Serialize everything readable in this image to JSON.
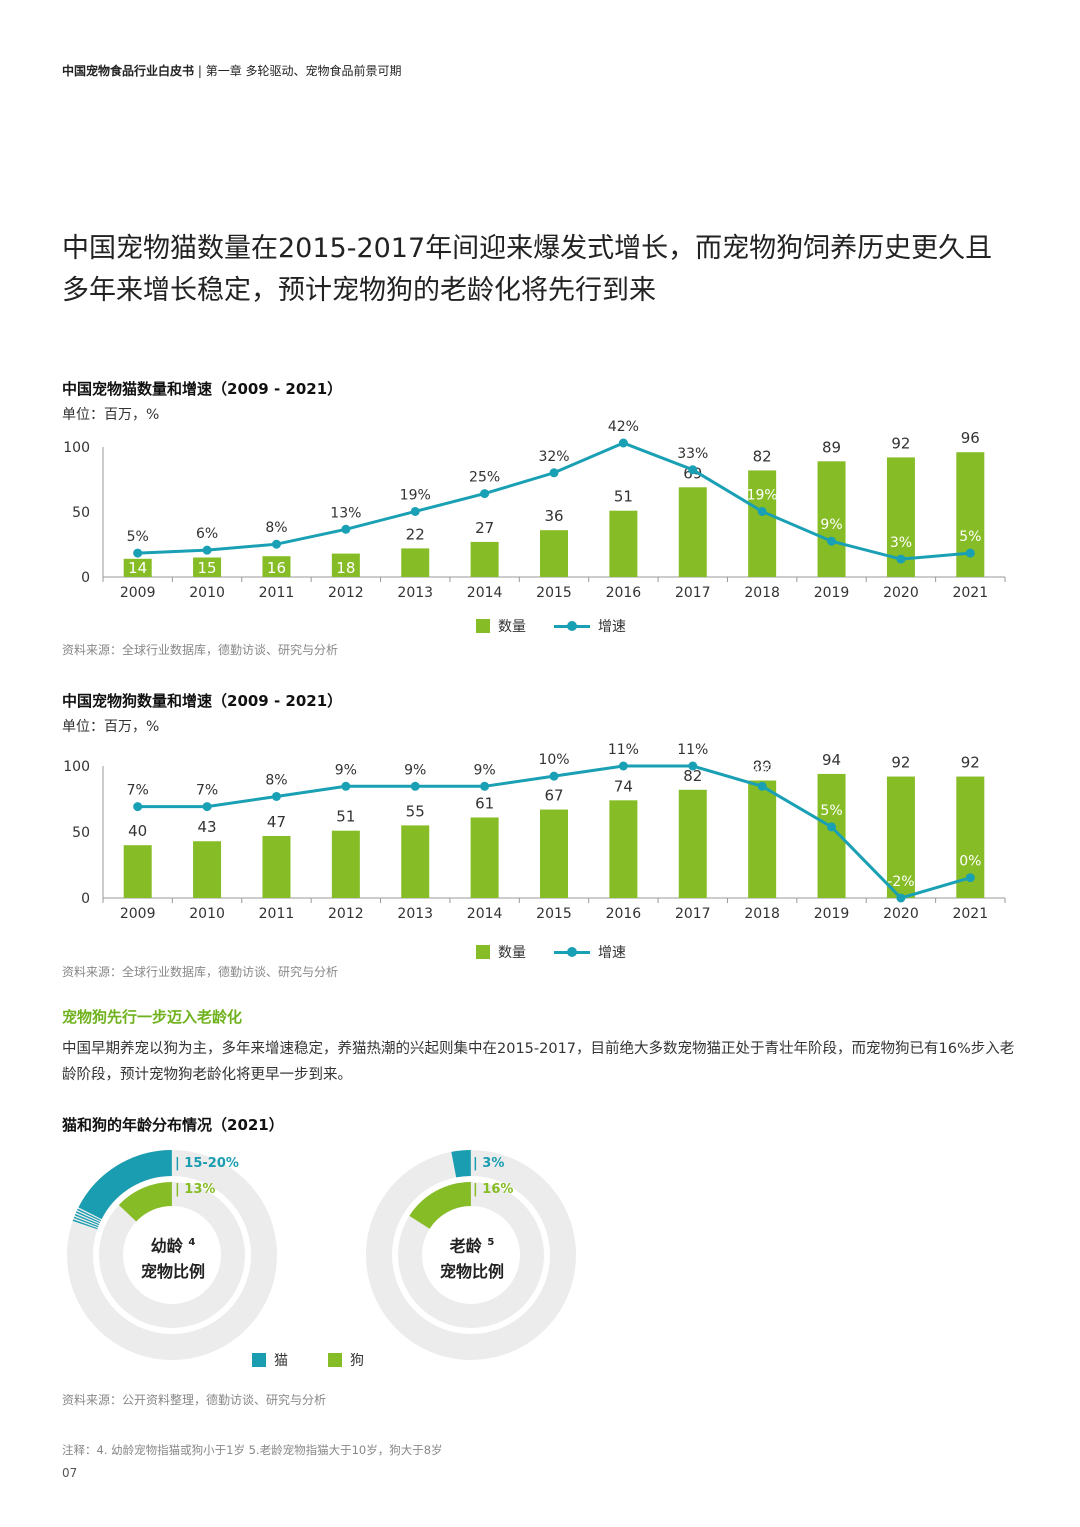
{
  "header": {
    "report": "中国宠物食品行业白皮书",
    "chapter": "第一章 多轮驱动、宠物食品前景可期"
  },
  "headline": {
    "line1": "中国宠物猫数量在2015-2017年间迎来爆发式增长，而宠物狗饲养历史更久且",
    "line2": "多年来增长稳定，预计宠物狗的老龄化将先行到来"
  },
  "colors": {
    "bar": "#86bc25",
    "line": "#1aa0b4",
    "cat": "#1a9db0",
    "dog": "#86bc25",
    "ring": "#ececec"
  },
  "chart_data": [
    {
      "type": "bar",
      "title": "中国宠物猫数量和增速（2009 - 2021）",
      "unit": "单位：百万，%",
      "categories": [
        "2009",
        "2010",
        "2011",
        "2012",
        "2013",
        "2014",
        "2015",
        "2016",
        "2017",
        "2018",
        "2019",
        "2020",
        "2021"
      ],
      "series": [
        {
          "name": "数量",
          "values": [
            14,
            15,
            16,
            18,
            22,
            27,
            36,
            51,
            69,
            82,
            89,
            92,
            96
          ]
        },
        {
          "name": "增速",
          "values": [
            5,
            6,
            8,
            13,
            19,
            25,
            32,
            42,
            33,
            19,
            9,
            3,
            5
          ],
          "labels": [
            "5%",
            "6%",
            "8%",
            "13%",
            "19%",
            "25%",
            "32%",
            "42%",
            "33%",
            "19%",
            "9%",
            "3%",
            "5%"
          ]
        }
      ],
      "yticks": [
        "0",
        "50",
        "100"
      ],
      "ylim": [
        0,
        100
      ],
      "source": "资料来源：全球行业数据库，德勤访谈、研究与分析"
    },
    {
      "type": "bar",
      "title": "中国宠物狗数量和增速（2009 - 2021）",
      "unit": "单位：百万，%",
      "categories": [
        "2009",
        "2010",
        "2011",
        "2012",
        "2013",
        "2014",
        "2015",
        "2016",
        "2017",
        "2018",
        "2019",
        "2020",
        "2021"
      ],
      "series": [
        {
          "name": "数量",
          "values": [
            40,
            43,
            47,
            51,
            55,
            61,
            67,
            74,
            82,
            89,
            94,
            92,
            92
          ]
        },
        {
          "name": "增速",
          "values": [
            7,
            7,
            8,
            9,
            9,
            9,
            10,
            11,
            11,
            9,
            5,
            -2,
            0
          ],
          "labels": [
            "7%",
            "7%",
            "8%",
            "9%",
            "9%",
            "9%",
            "10%",
            "11%",
            "11%",
            "9%",
            "5%",
            "-2%",
            "0%"
          ]
        }
      ],
      "yticks": [
        "0",
        "50",
        "100"
      ],
      "ylim": [
        0,
        100
      ],
      "source": "资料来源：全球行业数据库，德勤访谈、研究与分析"
    },
    {
      "type": "pie",
      "title": "猫和狗的年龄分布情况（2021）",
      "donuts": [
        {
          "label_main": "幼龄",
          "label_sup": "4",
          "label_sub": "宠物比例",
          "cat_value": 17.5,
          "cat_text": "15-20%",
          "dog_value": 13,
          "dog_text": "13%"
        },
        {
          "label_main": "老龄",
          "label_sup": "5",
          "label_sub": "宠物比例",
          "cat_value": 3,
          "cat_text": "3%",
          "dog_value": 16,
          "dog_text": "16%"
        }
      ],
      "legend": [
        "猫",
        "狗"
      ],
      "source": "资料来源：公开资料整理，德勤访谈、研究与分析"
    }
  ],
  "section": {
    "title": "宠物狗先行一步迈入老龄化",
    "paragraph": "中国早期养宠以狗为主，多年来增速稳定，养猫热潮的兴起则集中在2015-2017，目前绝大多数宠物猫正处于青壮年阶段，而宠物狗已有16%步入老龄阶段，预计宠物狗老龄化将更早一步到来。"
  },
  "notes": "注释：4. 幼龄宠物指猫或狗小于1岁  5.老龄宠物指猫大于10岁，狗大于8岁",
  "page_number": "07"
}
